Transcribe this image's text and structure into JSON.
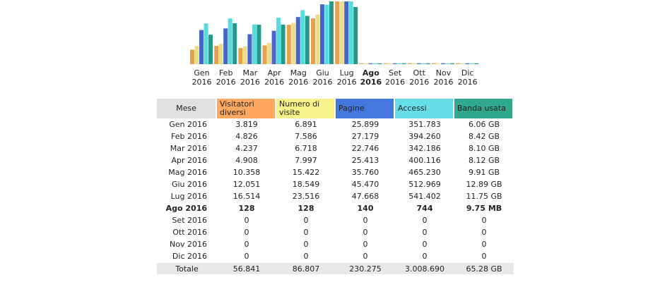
{
  "chart_data": {
    "type": "bar",
    "title": "",
    "categories": [
      {
        "month": "Gen",
        "year": "2016",
        "bold": false
      },
      {
        "month": "Feb",
        "year": "2016",
        "bold": false
      },
      {
        "month": "Mar",
        "year": "2016",
        "bold": false
      },
      {
        "month": "Apr",
        "year": "2016",
        "bold": false
      },
      {
        "month": "Mag",
        "year": "2016",
        "bold": false
      },
      {
        "month": "Giu",
        "year": "2016",
        "bold": false
      },
      {
        "month": "Lug",
        "year": "2016",
        "bold": false
      },
      {
        "month": "Ago",
        "year": "2016",
        "bold": true
      },
      {
        "month": "Set",
        "year": "2016",
        "bold": false
      },
      {
        "month": "Ott",
        "year": "2016",
        "bold": false
      },
      {
        "month": "Nov",
        "year": "2016",
        "bold": false
      },
      {
        "month": "Dic",
        "year": "2016",
        "bold": false
      }
    ],
    "series": [
      {
        "name": "Visitatori diversi",
        "color": "#e4a24a",
        "values": [
          3819,
          4826,
          4237,
          4908,
          10358,
          12051,
          16514,
          128,
          0,
          0,
          0,
          0
        ]
      },
      {
        "name": "Numero di visite",
        "color": "#eedd88",
        "values": [
          6891,
          7586,
          6718,
          7997,
          15422,
          18549,
          23516,
          128,
          0,
          0,
          0,
          0
        ]
      },
      {
        "name": "Pagine",
        "color": "#4466cc",
        "values": [
          25899,
          27179,
          22746,
          25413,
          35760,
          45470,
          47668,
          140,
          0,
          0,
          0,
          0
        ]
      },
      {
        "name": "Accessi",
        "color": "#55dddd",
        "values": [
          351783,
          394260,
          342186,
          400116,
          465230,
          512969,
          541402,
          744,
          0,
          0,
          0,
          0
        ]
      },
      {
        "name": "Banda usata",
        "color": "#22998a",
        "values_gb": [
          6.06,
          8.42,
          8.1,
          8.12,
          9.91,
          12.89,
          11.75,
          0.0095,
          0,
          0,
          0,
          0
        ]
      }
    ]
  },
  "table": {
    "headers": {
      "mese": "Mese",
      "visitatori": "Visitatori diversi",
      "visite": "Numero di visite",
      "pagine": "Pagine",
      "accessi": "Accessi",
      "banda": "Banda usata"
    },
    "header_colors": {
      "mese": "#e0e0e0",
      "visitatori": "#ffa861",
      "visite": "#f8f28a",
      "pagine": "#4477dd",
      "accessi": "#66dde8",
      "banda": "#2fa88f"
    },
    "rows": [
      {
        "mese": "Gen 2016",
        "visitatori": "3.819",
        "visite": "6.891",
        "pagine": "25.899",
        "accessi": "351.783",
        "banda": "6.06 GB",
        "bold": false
      },
      {
        "mese": "Feb 2016",
        "visitatori": "4.826",
        "visite": "7.586",
        "pagine": "27.179",
        "accessi": "394.260",
        "banda": "8.42 GB",
        "bold": false
      },
      {
        "mese": "Mar 2016",
        "visitatori": "4.237",
        "visite": "6.718",
        "pagine": "22.746",
        "accessi": "342.186",
        "banda": "8.10 GB",
        "bold": false
      },
      {
        "mese": "Apr 2016",
        "visitatori": "4.908",
        "visite": "7.997",
        "pagine": "25.413",
        "accessi": "400.116",
        "banda": "8.12 GB",
        "bold": false
      },
      {
        "mese": "Mag 2016",
        "visitatori": "10.358",
        "visite": "15.422",
        "pagine": "35.760",
        "accessi": "465.230",
        "banda": "9.91 GB",
        "bold": false
      },
      {
        "mese": "Giu 2016",
        "visitatori": "12.051",
        "visite": "18.549",
        "pagine": "45.470",
        "accessi": "512.969",
        "banda": "12.89 GB",
        "bold": false
      },
      {
        "mese": "Lug 2016",
        "visitatori": "16.514",
        "visite": "23.516",
        "pagine": "47.668",
        "accessi": "541.402",
        "banda": "11.75 GB",
        "bold": false
      },
      {
        "mese": "Ago 2016",
        "visitatori": "128",
        "visite": "128",
        "pagine": "140",
        "accessi": "744",
        "banda": "9.75 MB",
        "bold": true
      },
      {
        "mese": "Set 2016",
        "visitatori": "0",
        "visite": "0",
        "pagine": "0",
        "accessi": "0",
        "banda": "0",
        "bold": false
      },
      {
        "mese": "Ott 2016",
        "visitatori": "0",
        "visite": "0",
        "pagine": "0",
        "accessi": "0",
        "banda": "0",
        "bold": false
      },
      {
        "mese": "Nov 2016",
        "visitatori": "0",
        "visite": "0",
        "pagine": "0",
        "accessi": "0",
        "banda": "0",
        "bold": false
      },
      {
        "mese": "Dic 2016",
        "visitatori": "0",
        "visite": "0",
        "pagine": "0",
        "accessi": "0",
        "banda": "0",
        "bold": false
      }
    ],
    "total": {
      "mese": "Totale",
      "visitatori": "56.841",
      "visite": "86.807",
      "pagine": "230.275",
      "accessi": "3.008.690",
      "banda": "65.28 GB"
    }
  }
}
